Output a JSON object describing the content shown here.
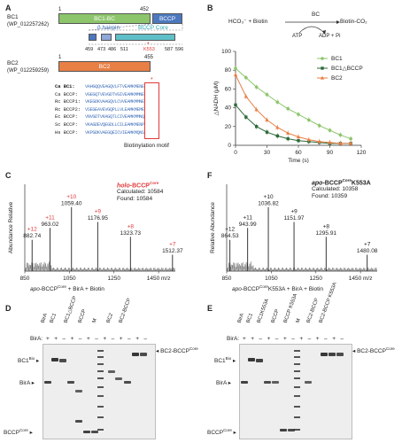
{
  "colors": {
    "green": "#8cc56b",
    "blue": "#4c78bf",
    "cyan": "#5ebfc8",
    "orange": "#e87f45",
    "dark_green": "#2d6a3a",
    "red": "#e03a3a"
  },
  "panel_a": {
    "label": "A",
    "bc1_name": "BC1",
    "bc1_acc": "(WP_012257262)",
    "bc1_start": "1",
    "bc1_end": "452",
    "bc1_domain": "BC1-BC",
    "bccp_domain": "BCCP",
    "hairpin": "β hairpin",
    "core": "BCCP Core",
    "positions": [
      "459",
      "473",
      "486",
      "511",
      "587",
      "596"
    ],
    "k553": "K553",
    "bc2_name": "BC2",
    "bc2_acc": "(WP_012259259)",
    "bc2_start": "1",
    "bc2_end": "455",
    "bc2_domain": "BC2",
    "star": "*",
    "alignment": [
      {
        "name": "Ca BC1:",
        "seq": "VAHGQQVEAGQVLFTVEAMKMENE",
        "bold": true
      },
      {
        "name": "Ca BCCP:",
        "seq": "VGEGQTVEVGDTVGIVEAMKMMNE",
        "bold": false
      },
      {
        "name": "Rc BCCP1:",
        "seq": "VKEGDKVAAGQVLCVVEAMKMMNE",
        "bold": false
      },
      {
        "name": "Rc BCCP2:",
        "seq": "VSEGEAVEVGQPLLVLEAMKMEME",
        "bold": false
      },
      {
        "name": "Ec BCCP:",
        "seq": "VNVGDTVKAGQTLCIVEAMKMMNQ",
        "bold": false
      },
      {
        "name": "Sc BCCP:",
        "seq": "VKAGDEVQEGDLLCILEAMKMENP",
        "bold": false
      },
      {
        "name": "Hs BCCP:",
        "seq": "VKPGDKVAEGQEICVIEAMKMQNS",
        "bold": false
      }
    ],
    "motif": "Biotinylation motif"
  },
  "panel_b": {
    "label": "B",
    "scheme_reactant": "HCO₃⁻ + Biotin",
    "scheme_enzyme": "BC",
    "scheme_product": "Biotin-CO₂",
    "scheme_atp": "ATP",
    "scheme_adp": "ADP + Pi",
    "ylabel": "△NADH (μM)",
    "xlabel": "Time (s)"
  },
  "chart_data": {
    "type": "line",
    "xlabel": "Time (s)",
    "ylabel": "△NADH (μM)",
    "xlim": [
      0,
      120
    ],
    "ylim": [
      0,
      100
    ],
    "xticks": [
      0,
      30,
      60,
      90,
      120
    ],
    "yticks": [
      0,
      20,
      40,
      60,
      80,
      100
    ],
    "x": [
      0,
      10,
      20,
      30,
      40,
      50,
      60,
      70,
      80,
      90,
      100,
      110
    ],
    "series": [
      {
        "name": "BC1",
        "color": "#8cc56b",
        "values": [
          82,
          72,
          62,
          54,
          46,
          39,
          33,
          27,
          21,
          16,
          11,
          7
        ]
      },
      {
        "name": "BC1△BCCP",
        "color": "#2d6a3a",
        "values": [
          43,
          30,
          20,
          14,
          10,
          7,
          5,
          4,
          3,
          2,
          2,
          2
        ]
      },
      {
        "name": "BC2",
        "color": "#e87f45",
        "values": [
          75,
          52,
          38,
          27,
          19,
          13,
          9,
          6,
          4,
          3,
          2,
          2
        ]
      }
    ],
    "legend": "top-right",
    "grid": false
  },
  "panel_c": {
    "label": "C",
    "title_prefix": "holo",
    "title_main": "-BCCP",
    "title_sup": "Core",
    "calculated": "Calculated: 10584",
    "found": "Found: 10584",
    "ylabel": "Abundance Relative",
    "peaks": [
      {
        "charge": "+12",
        "mz": "882.74"
      },
      {
        "charge": "+11",
        "mz": "963.02"
      },
      {
        "charge": "+10",
        "mz": "1059.40"
      },
      {
        "charge": "+9",
        "mz": "1176.95"
      },
      {
        "charge": "+8",
        "mz": "1323.73"
      },
      {
        "charge": "+7",
        "mz": "1512.37"
      }
    ],
    "xticks": [
      "850",
      "1050",
      "1250",
      "1450 m/z"
    ],
    "caption_a": "apo",
    "caption_b": "-BCCP",
    "caption_sup": "Core",
    "caption_c": " + BirA + Biotin"
  },
  "panel_f": {
    "label": "F",
    "title_prefix": "apo",
    "title_main": "-BCCP",
    "title_sup": "Core",
    "title_suffix": "K553A",
    "calculated": "Calculated: 10358",
    "found": "Found: 10359",
    "ylabel": "Relative Abundance",
    "peaks": [
      {
        "charge": "+12",
        "mz": "864.53"
      },
      {
        "charge": "+11",
        "mz": "943.99"
      },
      {
        "charge": "+10",
        "mz": "1036.82"
      },
      {
        "charge": "+9",
        "mz": "1151.97"
      },
      {
        "charge": "+8",
        "mz": "1295.91"
      },
      {
        "charge": "+7",
        "mz": "1480.08"
      }
    ],
    "xticks": [
      "850",
      "1050",
      "1250",
      "1450 m/z"
    ],
    "caption_a": "apo",
    "caption_b": "-BCCP",
    "caption_sup": "Core",
    "caption_c": "K553A + BirA + Biotin"
  },
  "panel_d": {
    "label": "D",
    "lanes": [
      "BirA",
      "BC1",
      "BC1△BCCP",
      "BCCP",
      "M",
      "BC2",
      "BC2-BCCP"
    ],
    "bira_label": "BirA:",
    "bira_signs": [
      "+",
      "+",
      "–",
      "+",
      "–",
      "+",
      "–",
      "+",
      "–",
      "+",
      "–",
      "+",
      "–"
    ],
    "left_markers": [
      "BC1",
      "BirA",
      "BCCP"
    ],
    "marker_sup_bio": "Bio",
    "marker_sup_core": "Core",
    "right_marker": "BC2-BCCP"
  },
  "panel_e": {
    "label": "E",
    "lanes": [
      "BirA",
      "BC1",
      "BC1K553A",
      "BCCP",
      "BCCP K553A",
      "M",
      "BC2-BCCP",
      "BC2-BCCP K553A"
    ],
    "bira_label": "BirA:",
    "bira_signs": [
      "+",
      "+",
      "–",
      "+",
      "–",
      "+",
      "–",
      "+",
      "–",
      "+",
      "–",
      "+",
      "–"
    ],
    "left_markers": [
      "BC1",
      "BirA",
      "BCCP"
    ],
    "marker_sup_bio": "Bio",
    "marker_sup_core": "Core",
    "right_marker": "BC2-BCCP"
  }
}
